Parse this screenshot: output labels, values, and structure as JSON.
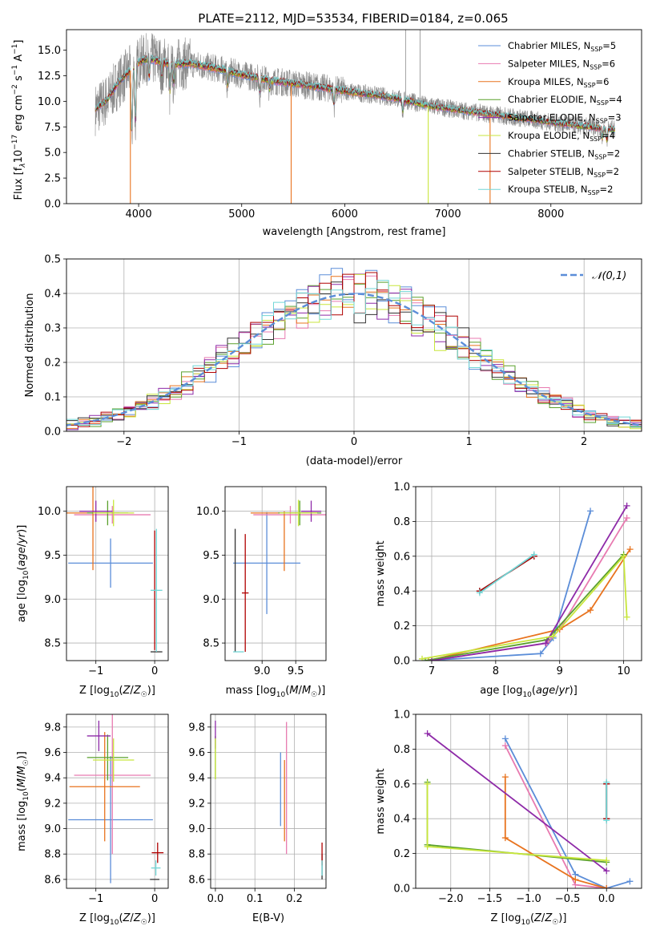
{
  "figure_title": "PLATE=2112, MJD=53534, FIBERID=0184, z=0.065",
  "colors": {
    "chabrier_miles": "#5b8dd8",
    "salpeter_miles": "#e87ab0",
    "kroupa_miles": "#e8731e",
    "chabrier_elodie": "#5aa02c",
    "salpeter_elodie": "#8e2aa8",
    "kroupa_elodie": "#c8e63c",
    "chabrier_stelib": "#333333",
    "salpeter_stelib": "#b00000",
    "kroupa_stelib": "#72d6d6",
    "data_gray": "#888888",
    "gaussian": "#5b8dd8"
  },
  "chart_data": [
    {
      "id": "spectrum",
      "type": "line",
      "title": "PLATE=2112, MJD=53534, FIBERID=0184, z=0.065",
      "xlabel": "wavelength [Angstrom, rest frame]",
      "ylabel": "Flux [f_λ 10^-17 erg cm^-2 s^-1 A^-1]",
      "xlim": [
        3300,
        8880
      ],
      "ylim": [
        0,
        17
      ],
      "xticks": [
        "4000",
        "5000",
        "6000",
        "7000",
        "8000"
      ],
      "xtick_values": [
        4000,
        5000,
        6000,
        7000,
        8000
      ],
      "yticks": [
        "0.0",
        "2.5",
        "5.0",
        "7.5",
        "10.0",
        "12.5",
        "15.0"
      ],
      "ytick_values": [
        0,
        2.5,
        5,
        7.5,
        10,
        12.5,
        15
      ],
      "grid": false,
      "legend_position": "top-right",
      "legend": [
        {
          "base": "Chabrier MILES, N",
          "sub": "SSP",
          "tail": "=5",
          "color": "#5b8dd8"
        },
        {
          "base": "Salpeter MILES, N",
          "sub": "SSP",
          "tail": "=6",
          "color": "#e87ab0"
        },
        {
          "base": "Kroupa MILES, N",
          "sub": "SSP",
          "tail": "=6",
          "color": "#e8731e"
        },
        {
          "base": "Chabrier ELODIE, N",
          "sub": "SSP",
          "tail": "=4",
          "color": "#5aa02c"
        },
        {
          "base": "Salpeter ELODIE, N",
          "sub": "SSP",
          "tail": "=3",
          "color": "#8e2aa8"
        },
        {
          "base": "Kroupa ELODIE, N",
          "sub": "SSP",
          "tail": "=4",
          "color": "#c8e63c"
        },
        {
          "base": "Chabrier STELIB, N",
          "sub": "SSP",
          "tail": "=2",
          "color": "#333333"
        },
        {
          "base": "Salpeter STELIB, N",
          "sub": "SSP",
          "tail": "=2",
          "color": "#b00000"
        },
        {
          "base": "Kroupa STELIB, N",
          "sub": "SSP",
          "tail": "=2",
          "color": "#72d6d6"
        }
      ],
      "continuum": [
        [
          3580,
          9.2
        ],
        [
          3700,
          10.2
        ],
        [
          3800,
          11.8
        ],
        [
          3900,
          12.8
        ],
        [
          4000,
          13.8
        ],
        [
          4100,
          14.2
        ],
        [
          4300,
          13.6
        ],
        [
          4500,
          13.7
        ],
        [
          4800,
          13.1
        ],
        [
          5000,
          12.6
        ],
        [
          5300,
          12.0
        ],
        [
          5600,
          11.6
        ],
        [
          6000,
          11.0
        ],
        [
          6300,
          10.6
        ],
        [
          6500,
          10.3
        ],
        [
          6800,
          9.6
        ],
        [
          7000,
          9.3
        ],
        [
          7300,
          8.9
        ],
        [
          7600,
          8.5
        ],
        [
          7900,
          8.1
        ],
        [
          8200,
          7.7
        ],
        [
          8500,
          7.35
        ],
        [
          8620,
          7.25
        ]
      ],
      "absorption_lines": [
        [
          3934,
          7
        ],
        [
          3969,
          6
        ],
        [
          4102,
          2
        ],
        [
          4226,
          1.5
        ],
        [
          4304,
          3
        ],
        [
          4340,
          2
        ],
        [
          4861,
          1.5
        ],
        [
          5175,
          1.5
        ],
        [
          5270,
          1
        ],
        [
          5895,
          1.5
        ],
        [
          6563,
          1.2
        ],
        [
          8498,
          1
        ],
        [
          8542,
          1.2
        ],
        [
          8662,
          1.2
        ]
      ],
      "model_dips": [
        [
          3920,
          0.0,
          "#e8731e"
        ],
        [
          5480,
          0.0,
          "#e8731e"
        ],
        [
          6810,
          0.0,
          "#c8e63c"
        ],
        [
          7410,
          0.0,
          "#e8731e"
        ]
      ],
      "data_spikes": [
        [
          6590,
          17
        ],
        [
          6730,
          17
        ]
      ]
    },
    {
      "id": "residuals",
      "type": "step",
      "xlabel": "(data-model)/error",
      "ylabel": "Normed distribution",
      "xlim": [
        -2.5,
        2.5
      ],
      "ylim": [
        0,
        0.5
      ],
      "xticks": [
        "−2",
        "−1",
        "0",
        "1",
        "2"
      ],
      "xtick_values": [
        -2,
        -1,
        0,
        1,
        2
      ],
      "yticks": [
        "0.0",
        "0.1",
        "0.2",
        "0.3",
        "0.4",
        "0.5"
      ],
      "ytick_values": [
        0,
        0.1,
        0.2,
        0.3,
        0.4,
        0.5
      ],
      "grid": true,
      "legend_position": "top-right",
      "legend_label": "𝒩(0,1)",
      "bin_width": 0.1
    },
    {
      "id": "age_vs_Z",
      "type": "scatter",
      "xlabel": "Z [log10(Z/Z☉)]",
      "ylabel": "age  [log10(age/yr)]",
      "xlim": [
        -1.5,
        0.23
      ],
      "ylim": [
        8.3,
        10.28
      ],
      "xticks": [
        "−1",
        "0"
      ],
      "xtick_values": [
        -1,
        0
      ],
      "yticks": [
        "8.5",
        "9.0",
        "9.5",
        "10.0"
      ],
      "ytick_values": [
        8.5,
        9.0,
        9.5,
        10.0
      ],
      "grid": true,
      "points": [
        {
          "x": -0.75,
          "xerr": 0.72,
          "y": 9.41,
          "yerr": 0.28,
          "color": "#5b8dd8"
        },
        {
          "x": -0.72,
          "xerr": 0.65,
          "y": 9.96,
          "yerr": 0.1,
          "color": "#e87ab0"
        },
        {
          "x": -1.05,
          "xerr": 0.45,
          "y": 9.98,
          "yerr": 0.65,
          "color": "#e8731e"
        },
        {
          "x": -0.8,
          "xerr": 0.35,
          "y": 9.98,
          "yerr": 0.14,
          "color": "#5aa02c"
        },
        {
          "x": -1.0,
          "xerr": 0.28,
          "y": 10.0,
          "yerr": 0.12,
          "color": "#8e2aa8"
        },
        {
          "x": -0.7,
          "xerr": 0.35,
          "y": 9.98,
          "yerr": 0.15,
          "color": "#c8e63c"
        },
        {
          "x": 0.03,
          "xerr": 0.1,
          "y": 8.4,
          "yerr": 0.0,
          "color": "#333333"
        },
        {
          "x": 0.0,
          "xerr": 0.0,
          "y": 9.1,
          "yerr": 0.68,
          "color": "#b00000"
        },
        {
          "x": 0.03,
          "xerr": 0.1,
          "y": 9.1,
          "yerr": 0.7,
          "color": "#72d6d6"
        }
      ]
    },
    {
      "id": "age_vs_mass",
      "type": "scatter",
      "xlabel": "mass [log10(M/M☉)]",
      "ylabel": "",
      "xlim": [
        8.45,
        9.95
      ],
      "ylim": [
        8.3,
        10.28
      ],
      "xticks": [
        "9.0",
        "9.5"
      ],
      "xtick_values": [
        9.0,
        9.5
      ],
      "yticks": [
        "8.5",
        "9.0",
        "9.5",
        "10.0"
      ],
      "ytick_values": [
        8.5,
        9.0,
        9.5,
        10.0
      ],
      "grid": true,
      "points": [
        {
          "x": 9.07,
          "xerr": 0.5,
          "y": 9.41,
          "yerr": 0.0,
          "color": "#5b8dd8"
        },
        {
          "x": 9.07,
          "xerr": 0.0,
          "y": 9.41,
          "yerr": 0.58,
          "color": "#5b8dd8"
        },
        {
          "x": 9.42,
          "xerr": 0.55,
          "y": 9.96,
          "yerr": 0.1,
          "color": "#e87ab0"
        },
        {
          "x": 9.33,
          "xerr": 0.5,
          "y": 9.98,
          "yerr": 0.0,
          "color": "#e8731e"
        },
        {
          "x": 9.33,
          "xerr": 0.0,
          "y": 9.66,
          "yerr": 0.34,
          "color": "#e8731e"
        },
        {
          "x": 9.56,
          "xerr": 0.32,
          "y": 9.98,
          "yerr": 0.14,
          "color": "#5aa02c"
        },
        {
          "x": 9.73,
          "xerr": 0.15,
          "y": 10.0,
          "yerr": 0.12,
          "color": "#8e2aa8"
        },
        {
          "x": 9.54,
          "xerr": 0.28,
          "y": 9.98,
          "yerr": 0.15,
          "color": "#c8e63c"
        },
        {
          "x": 8.6,
          "xerr": 0.0,
          "y": 9.1,
          "yerr": 0.7,
          "color": "#333333"
        },
        {
          "x": 8.75,
          "xerr": 0.05,
          "y": 9.07,
          "yerr": 0.67,
          "color": "#b00000"
        },
        {
          "x": 8.65,
          "xerr": 0.08,
          "y": 8.4,
          "yerr": 0.0,
          "color": "#72d6d6"
        }
      ]
    },
    {
      "id": "mass_weight_vs_age",
      "type": "line",
      "xlabel": "age  [log10(age/yr)]",
      "ylabel": "mass weight",
      "xlim": [
        6.75,
        10.28
      ],
      "ylim": [
        0,
        1
      ],
      "xticks": [
        "7",
        "8",
        "9",
        "10"
      ],
      "xtick_values": [
        7,
        8,
        9,
        10
      ],
      "yticks": [
        "0.0",
        "0.2",
        "0.4",
        "0.6",
        "0.8",
        "1.0"
      ],
      "ytick_values": [
        0,
        0.2,
        0.4,
        0.6,
        0.8,
        1.0
      ],
      "grid": true,
      "series": [
        {
          "color": "#5b8dd8",
          "x": [
            6.9,
            8.7,
            8.9,
            9.48
          ],
          "y": [
            0.0,
            0.04,
            0.13,
            0.86
          ]
        },
        {
          "color": "#e87ab0",
          "x": [
            7.0,
            8.8,
            9.0,
            10.05
          ],
          "y": [
            0.0,
            0.1,
            0.18,
            0.82
          ]
        },
        {
          "color": "#e8731e",
          "x": [
            6.95,
            9.0,
            9.48,
            10.1
          ],
          "y": [
            0.0,
            0.18,
            0.29,
            0.64
          ]
        },
        {
          "color": "#5aa02c",
          "x": [
            6.9,
            8.8,
            10.0
          ],
          "y": [
            0.0,
            0.12,
            0.61
          ]
        },
        {
          "color": "#8e2aa8",
          "x": [
            7.0,
            8.78,
            10.05
          ],
          "y": [
            0.0,
            0.1,
            0.89
          ]
        },
        {
          "color": "#c8e63c",
          "x": [
            6.85,
            8.9,
            10.0,
            10.05
          ],
          "y": [
            0.01,
            0.14,
            0.6,
            0.25
          ]
        },
        {
          "color": "#333333",
          "x": [
            7.75,
            8.6
          ],
          "y": [
            0.4,
            0.6
          ]
        },
        {
          "color": "#b00000",
          "x": [
            7.75,
            8.6
          ],
          "y": [
            0.4,
            0.6
          ]
        },
        {
          "color": "#72d6d6",
          "x": [
            7.75,
            8.6
          ],
          "y": [
            0.39,
            0.61
          ]
        }
      ]
    },
    {
      "id": "mass_vs_Z",
      "type": "scatter",
      "xlabel": "Z [log10(Z/Z☉)]",
      "ylabel": "mass [log10(M/M☉)]",
      "xlim": [
        -1.5,
        0.23
      ],
      "ylim": [
        8.53,
        9.9
      ],
      "xticks": [
        "−1",
        "0"
      ],
      "xtick_values": [
        -1,
        0
      ],
      "yticks": [
        "8.6",
        "8.8",
        "9.0",
        "9.2",
        "9.4",
        "9.6",
        "9.8"
      ],
      "ytick_values": [
        8.6,
        8.8,
        9.0,
        9.2,
        9.4,
        9.6,
        9.8
      ],
      "grid": true,
      "points": [
        {
          "x": -0.75,
          "xerr": 0.72,
          "y": 9.07,
          "yerr": 0.5,
          "color": "#5b8dd8"
        },
        {
          "x": -0.72,
          "xerr": 0.65,
          "y": 9.42,
          "yerr": 0.62,
          "color": "#e87ab0"
        },
        {
          "x": -0.85,
          "xerr": 0.6,
          "y": 9.33,
          "yerr": 0.43,
          "color": "#e8731e"
        },
        {
          "x": -0.8,
          "xerr": 0.35,
          "y": 9.56,
          "yerr": 0.18,
          "color": "#5aa02c"
        },
        {
          "x": -0.95,
          "xerr": 0.2,
          "y": 9.73,
          "yerr": 0.12,
          "color": "#8e2aa8"
        },
        {
          "x": -0.7,
          "xerr": 0.35,
          "y": 9.54,
          "yerr": 0.17,
          "color": "#c8e63c"
        },
        {
          "x": 0.0,
          "xerr": 0.08,
          "y": 8.6,
          "yerr": 0.0,
          "color": "#333333"
        },
        {
          "x": 0.05,
          "xerr": 0.1,
          "y": 8.81,
          "yerr": 0.08,
          "color": "#b00000"
        },
        {
          "x": 0.02,
          "xerr": 0.08,
          "y": 8.69,
          "yerr": 0.06,
          "color": "#72d6d6"
        }
      ]
    },
    {
      "id": "mass_vs_ebv",
      "type": "scatter",
      "xlabel": "E(B-V)",
      "ylabel": "",
      "xlim": [
        -0.012,
        0.28
      ],
      "ylim": [
        8.53,
        9.9
      ],
      "xticks": [
        "0.0",
        "0.1",
        "0.2"
      ],
      "xtick_values": [
        0,
        0.1,
        0.2
      ],
      "yticks": [
        "8.6",
        "8.8",
        "9.0",
        "9.2",
        "9.4",
        "9.6",
        "9.8"
      ],
      "ytick_values": [
        8.6,
        8.8,
        9.0,
        9.2,
        9.4,
        9.6,
        9.8
      ],
      "grid": true,
      "points": [
        {
          "x": 0.165,
          "xerr": 0.0,
          "y": 9.31,
          "yerr": 0.29,
          "color": "#5b8dd8"
        },
        {
          "x": 0.18,
          "xerr": 0.0,
          "y": 9.32,
          "yerr": 0.52,
          "color": "#e87ab0"
        },
        {
          "x": 0.175,
          "xerr": 0.0,
          "y": 9.22,
          "yerr": 0.32,
          "color": "#e8731e"
        },
        {
          "x": 0.0,
          "xerr": 0.0,
          "y": 9.56,
          "yerr": 0.17,
          "color": "#5aa02c"
        },
        {
          "x": 0.0,
          "xerr": 0.0,
          "y": 9.74,
          "yerr": 0.11,
          "color": "#8e2aa8"
        },
        {
          "x": 0.0,
          "xerr": 0.0,
          "y": 9.55,
          "yerr": 0.16,
          "color": "#c8e63c"
        },
        {
          "x": 0.27,
          "xerr": 0.0,
          "y": 8.7,
          "yerr": 0.1,
          "color": "#333333"
        },
        {
          "x": 0.27,
          "xerr": 0.0,
          "y": 8.8,
          "yerr": 0.09,
          "color": "#b00000"
        },
        {
          "x": 0.27,
          "xerr": 0.0,
          "y": 8.69,
          "yerr": 0.06,
          "color": "#72d6d6"
        }
      ]
    },
    {
      "id": "mass_weight_vs_Z",
      "type": "line",
      "xlabel": "Z [log10(Z/Z☉)]",
      "ylabel": "mass weight",
      "xlim": [
        -2.45,
        0.45
      ],
      "ylim": [
        0,
        1
      ],
      "xticks": [
        "−2.0",
        "−1.5",
        "−1.0",
        "−0.5",
        "0.0"
      ],
      "xtick_values": [
        -2,
        -1.5,
        -1,
        -0.5,
        0
      ],
      "yticks": [
        "0.0",
        "0.2",
        "0.4",
        "0.6",
        "0.8",
        "1.0"
      ],
      "ytick_values": [
        0,
        0.2,
        0.4,
        0.6,
        0.8,
        1.0
      ],
      "grid": true,
      "series": [
        {
          "color": "#5b8dd8",
          "x": [
            0.3,
            0.0,
            -0.4,
            -1.3
          ],
          "y": [
            0.04,
            0.0,
            0.08,
            0.86
          ]
        },
        {
          "color": "#e87ab0",
          "x": [
            0.0,
            -0.4,
            -1.3
          ],
          "y": [
            0.0,
            0.02,
            0.82
          ]
        },
        {
          "color": "#e8731e",
          "x": [
            0.0,
            -0.4,
            -1.3,
            -1.3
          ],
          "y": [
            0.0,
            0.05,
            0.29,
            0.64
          ]
        },
        {
          "color": "#5aa02c",
          "x": [
            0.0,
            -2.3,
            -2.3
          ],
          "y": [
            0.15,
            0.25,
            0.61
          ]
        },
        {
          "color": "#8e2aa8",
          "x": [
            0.0,
            -2.3
          ],
          "y": [
            0.1,
            0.89
          ]
        },
        {
          "color": "#c8e63c",
          "x": [
            0.0,
            -2.3,
            -2.3
          ],
          "y": [
            0.16,
            0.24,
            0.6
          ]
        },
        {
          "color": "#333333",
          "x": [
            0.0,
            0.0
          ],
          "y": [
            0.4,
            0.6
          ]
        },
        {
          "color": "#b00000",
          "x": [
            0.0,
            0.0
          ],
          "y": [
            0.4,
            0.6
          ]
        },
        {
          "color": "#72d6d6",
          "x": [
            0.0,
            0.0
          ],
          "y": [
            0.39,
            0.61
          ]
        }
      ]
    }
  ]
}
